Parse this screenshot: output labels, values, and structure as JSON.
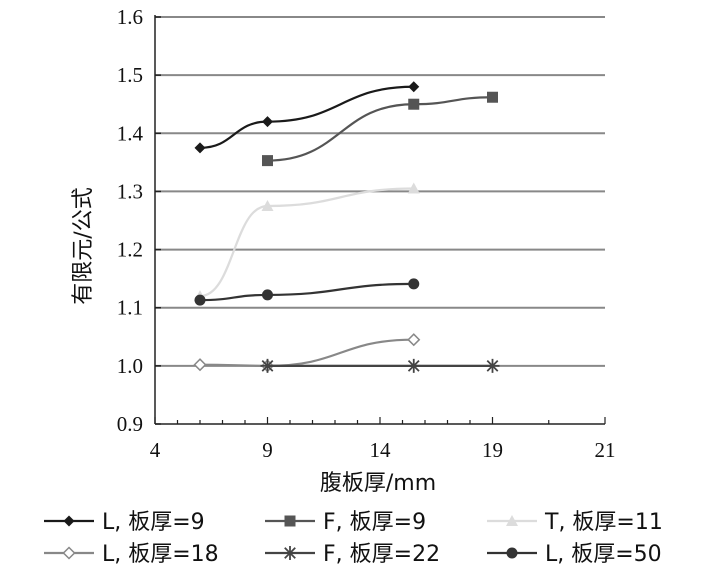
{
  "chart_data": {
    "type": "line",
    "xlabel": "腹板厚/mm",
    "ylabel": "有限元/公式",
    "xlim": [
      4,
      21
    ],
    "ylim": [
      0.9,
      1.6
    ],
    "x_ticks": [
      "4",
      "9",
      "14",
      "19",
      "21"
    ],
    "y_ticks": [
      "0.9",
      "1.0",
      "1.1",
      "1.2",
      "1.3",
      "1.4",
      "1.5",
      "1.6"
    ],
    "grid": "horizontal",
    "legend_position": "bottom",
    "series": [
      {
        "name": "L, 板厚=9",
        "marker": "diamond",
        "color": "#1a1a1a",
        "points": [
          [
            6,
            1.375
          ],
          [
            9,
            1.42
          ],
          [
            15.5,
            1.48
          ]
        ]
      },
      {
        "name": "F, 板厚=9",
        "marker": "square",
        "color": "#555555",
        "points": [
          [
            9,
            1.353
          ],
          [
            15.5,
            1.45
          ],
          [
            19,
            1.462
          ]
        ]
      },
      {
        "name": "T, 板厚=11",
        "marker": "triangle",
        "color": "#dcdcdc",
        "points": [
          [
            6,
            1.12
          ],
          [
            9,
            1.275
          ],
          [
            15.5,
            1.305
          ]
        ]
      },
      {
        "name": "L, 板厚=18",
        "marker": "diamond-open",
        "color": "#888888",
        "points": [
          [
            6,
            1.002
          ],
          [
            9,
            1.0
          ],
          [
            15.5,
            1.045
          ]
        ]
      },
      {
        "name": "F, 板厚=22",
        "marker": "asterisk",
        "color": "#444444",
        "points": [
          [
            9,
            1.0
          ],
          [
            15.5,
            1.0
          ],
          [
            19,
            1.0
          ]
        ]
      },
      {
        "name": "L, 板厚=50",
        "marker": "circle",
        "color": "#333333",
        "points": [
          [
            6,
            1.113
          ],
          [
            9,
            1.122
          ],
          [
            15.5,
            1.141
          ]
        ]
      }
    ]
  }
}
